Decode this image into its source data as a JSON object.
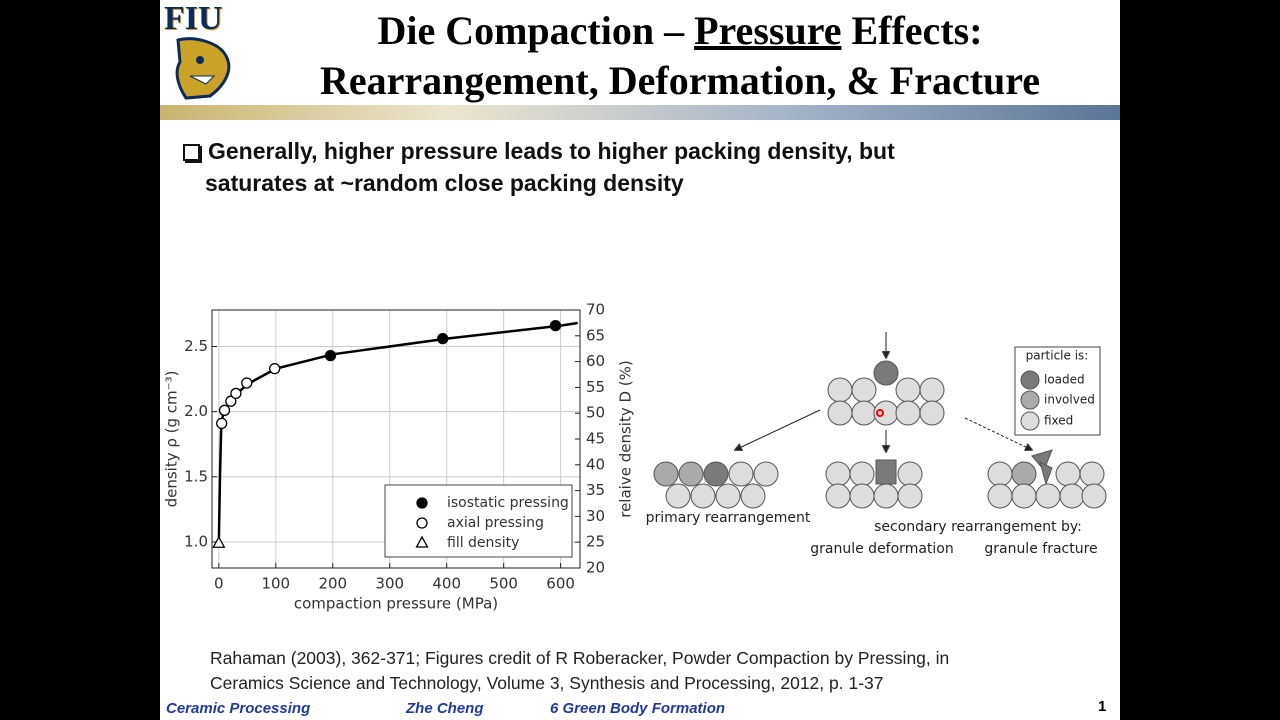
{
  "logo": {
    "text": "FIU"
  },
  "title": {
    "before": "Die Compaction – ",
    "underlined": "Pressure",
    "after": " Effects:",
    "line2": "Rearrangement, Deformation, & Fracture"
  },
  "bullet": {
    "lines": [
      "Generally, higher pressure leads to higher packing density, but",
      "saturates at ~random close packing density"
    ]
  },
  "chart_data": {
    "type": "scatter",
    "xlabel": "compaction pressure (MPa)",
    "ylabel": "density ρ (g cm⁻³)",
    "y2label": "relaive density D (%)",
    "xlim": [
      -12,
      634
    ],
    "xticks": [
      0,
      100,
      200,
      300,
      400,
      500,
      600
    ],
    "ylim": [
      0.8,
      2.78
    ],
    "yticks": [
      {
        "value": 1,
        "label": "1.0"
      },
      1.5,
      {
        "value": 2,
        "label": "2.0"
      },
      2.5
    ],
    "y2lim": [
      20,
      70
    ],
    "y2ticks": [
      20,
      25,
      30,
      35,
      40,
      45,
      50,
      55,
      60,
      65,
      70
    ],
    "grid": true,
    "series": [
      {
        "name": "isostatic pressing",
        "marker": "filled-circle",
        "color": "#000000",
        "x": [
          196,
          393,
          591
        ],
        "values": [
          2.43,
          2.56,
          2.66
        ]
      },
      {
        "name": "axial pressing",
        "marker": "open-circle",
        "color": "#000000",
        "x": [
          5,
          10,
          21,
          30,
          49,
          98
        ],
        "values": [
          1.91,
          2.01,
          2.08,
          2.14,
          2.22,
          2.33
        ]
      },
      {
        "name": "fill density",
        "marker": "open-triangle",
        "color": "#000000",
        "x": [
          0
        ],
        "values": [
          0.99
        ]
      }
    ],
    "curve": {
      "x": [
        0,
        2,
        4,
        7,
        12,
        25,
        50,
        100,
        200,
        400,
        600,
        630
      ],
      "values": [
        1.0,
        1.5,
        1.85,
        1.97,
        2.03,
        2.11,
        2.21,
        2.33,
        2.44,
        2.56,
        2.66,
        2.68
      ]
    }
  },
  "diagram": {
    "legend_title": "particle is:",
    "legend": [
      "loaded",
      "involved",
      "fixed"
    ],
    "labels": [
      "primary rearrangement",
      "secondary rearrangement by:",
      "granule deformation",
      "granule fracture"
    ]
  },
  "citation": {
    "lines": [
      "Rahaman (2003), 362-371; Figures credit of R Roberacker, Powder Compaction by Pressing, in",
      "Ceramics Science and Technology, Volume 3, Synthesis and Processing, 2012, p. 1-37"
    ]
  },
  "footer": {
    "course": "Ceramic Processing",
    "author": "Zhe Cheng",
    "chapter": "6  Green Body Formation",
    "page": "1"
  }
}
